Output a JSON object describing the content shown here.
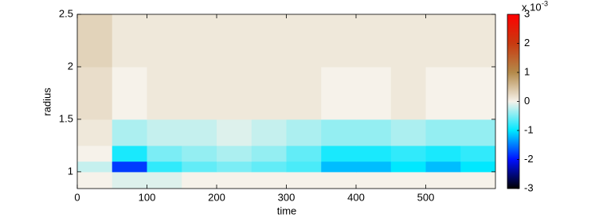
{
  "chart_data": {
    "type": "heatmap",
    "xlabel": "time",
    "ylabel": "radius",
    "xlim": [
      0,
      600
    ],
    "ylim": [
      0.84,
      2.5
    ],
    "xticks": [
      0,
      100,
      200,
      300,
      400,
      500
    ],
    "yticks": [
      1,
      1.5,
      2,
      2.5
    ],
    "x_bins": [
      0,
      50,
      100,
      150,
      200,
      250,
      300,
      350,
      400,
      450,
      500,
      550,
      600
    ],
    "y_bins": [
      0.84,
      1.0,
      1.1,
      1.25,
      1.5,
      2.0,
      2.5
    ],
    "z": [
      [
        0,
        -0.1,
        -0.1,
        0,
        0,
        0,
        0,
        0,
        0,
        0,
        0,
        0
      ],
      [
        -0.2,
        -1.8,
        -0.8,
        -0.6,
        -0.5,
        -0.6,
        -0.7,
        -1.2,
        -1.2,
        -1.0,
        -1.2,
        -1.0
      ],
      [
        0,
        -0.9,
        -0.5,
        -0.4,
        -0.3,
        -0.4,
        -0.6,
        -0.9,
        -0.9,
        -0.8,
        -0.9,
        -0.8
      ],
      [
        0.1,
        -0.3,
        -0.2,
        -0.2,
        -0.1,
        -0.2,
        -0.3,
        -0.4,
        -0.4,
        -0.3,
        -0.4,
        -0.4
      ],
      [
        0.2,
        0,
        0.1,
        0.1,
        0.1,
        0.1,
        0.1,
        0,
        0,
        0.1,
        0,
        0
      ],
      [
        0.3,
        0.1,
        0.1,
        0.1,
        0.1,
        0.1,
        0.1,
        0.1,
        0.1,
        0.1,
        0.1,
        0.1
      ]
    ],
    "clim": [
      -3,
      3
    ],
    "colorbar_ticks": [
      -3,
      -2,
      -1,
      0,
      1,
      2,
      3
    ],
    "colorbar_label": "x 10",
    "colorbar_exponent": -3,
    "colormap": [
      "#000000",
      "#0010ff",
      "#00e8ff",
      "#f6f2ea",
      "#b48a4a",
      "#c83a10",
      "#ff0000"
    ]
  }
}
